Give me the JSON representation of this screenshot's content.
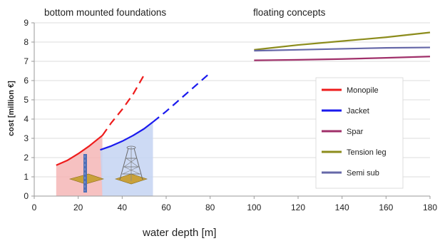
{
  "chart_data": {
    "type": "line",
    "xlabel": "water depth [m]",
    "ylabel": "cost [million €]",
    "xlim": [
      0,
      180
    ],
    "ylim": [
      0,
      9
    ],
    "x_ticks": [
      0,
      20,
      40,
      60,
      80,
      100,
      120,
      140,
      160,
      180
    ],
    "y_ticks": [
      0,
      1,
      2,
      3,
      4,
      5,
      6,
      7,
      8,
      9
    ],
    "grid": true,
    "legend_placement": "right",
    "annotations": {
      "bottom_title": "bottom mounted foundations",
      "floating_title": "floating concepts"
    },
    "shaded_regions": [
      {
        "series": "Monopile",
        "x": [
          10,
          31
        ],
        "color": "#f4b6b6"
      },
      {
        "series": "Jacket",
        "x": [
          31,
          54
        ],
        "color": "#c4d4f2"
      }
    ],
    "series": [
      {
        "name": "Monopile",
        "color": "#ee1c1c",
        "solid": {
          "x": [
            10,
            15,
            20,
            25,
            31
          ],
          "y": [
            1.6,
            1.85,
            2.2,
            2.6,
            3.15
          ]
        },
        "dashed": {
          "x": [
            31,
            35,
            40,
            45,
            50
          ],
          "y": [
            3.15,
            3.8,
            4.5,
            5.3,
            6.3
          ]
        }
      },
      {
        "name": "Jacket",
        "color": "#1a1aee",
        "solid": {
          "x": [
            30,
            35,
            40,
            45,
            50,
            54
          ],
          "y": [
            2.4,
            2.6,
            2.85,
            3.15,
            3.5,
            3.85
          ]
        },
        "dashed": {
          "x": [
            54,
            60,
            65,
            70,
            75,
            80
          ],
          "y": [
            3.85,
            4.4,
            4.9,
            5.4,
            5.9,
            6.4
          ]
        }
      },
      {
        "name": "Spar",
        "color": "#a0306a",
        "solid": {
          "x": [
            100,
            120,
            140,
            160,
            180
          ],
          "y": [
            7.05,
            7.08,
            7.12,
            7.18,
            7.25
          ]
        }
      },
      {
        "name": "Tension leg",
        "color": "#8c8c1c",
        "solid": {
          "x": [
            100,
            120,
            140,
            160,
            180
          ],
          "y": [
            7.6,
            7.85,
            8.05,
            8.25,
            8.5
          ]
        }
      },
      {
        "name": "Semi sub",
        "color": "#6668a8",
        "solid": {
          "x": [
            100,
            120,
            140,
            160,
            180
          ],
          "y": [
            7.55,
            7.6,
            7.65,
            7.7,
            7.72
          ]
        }
      }
    ]
  }
}
